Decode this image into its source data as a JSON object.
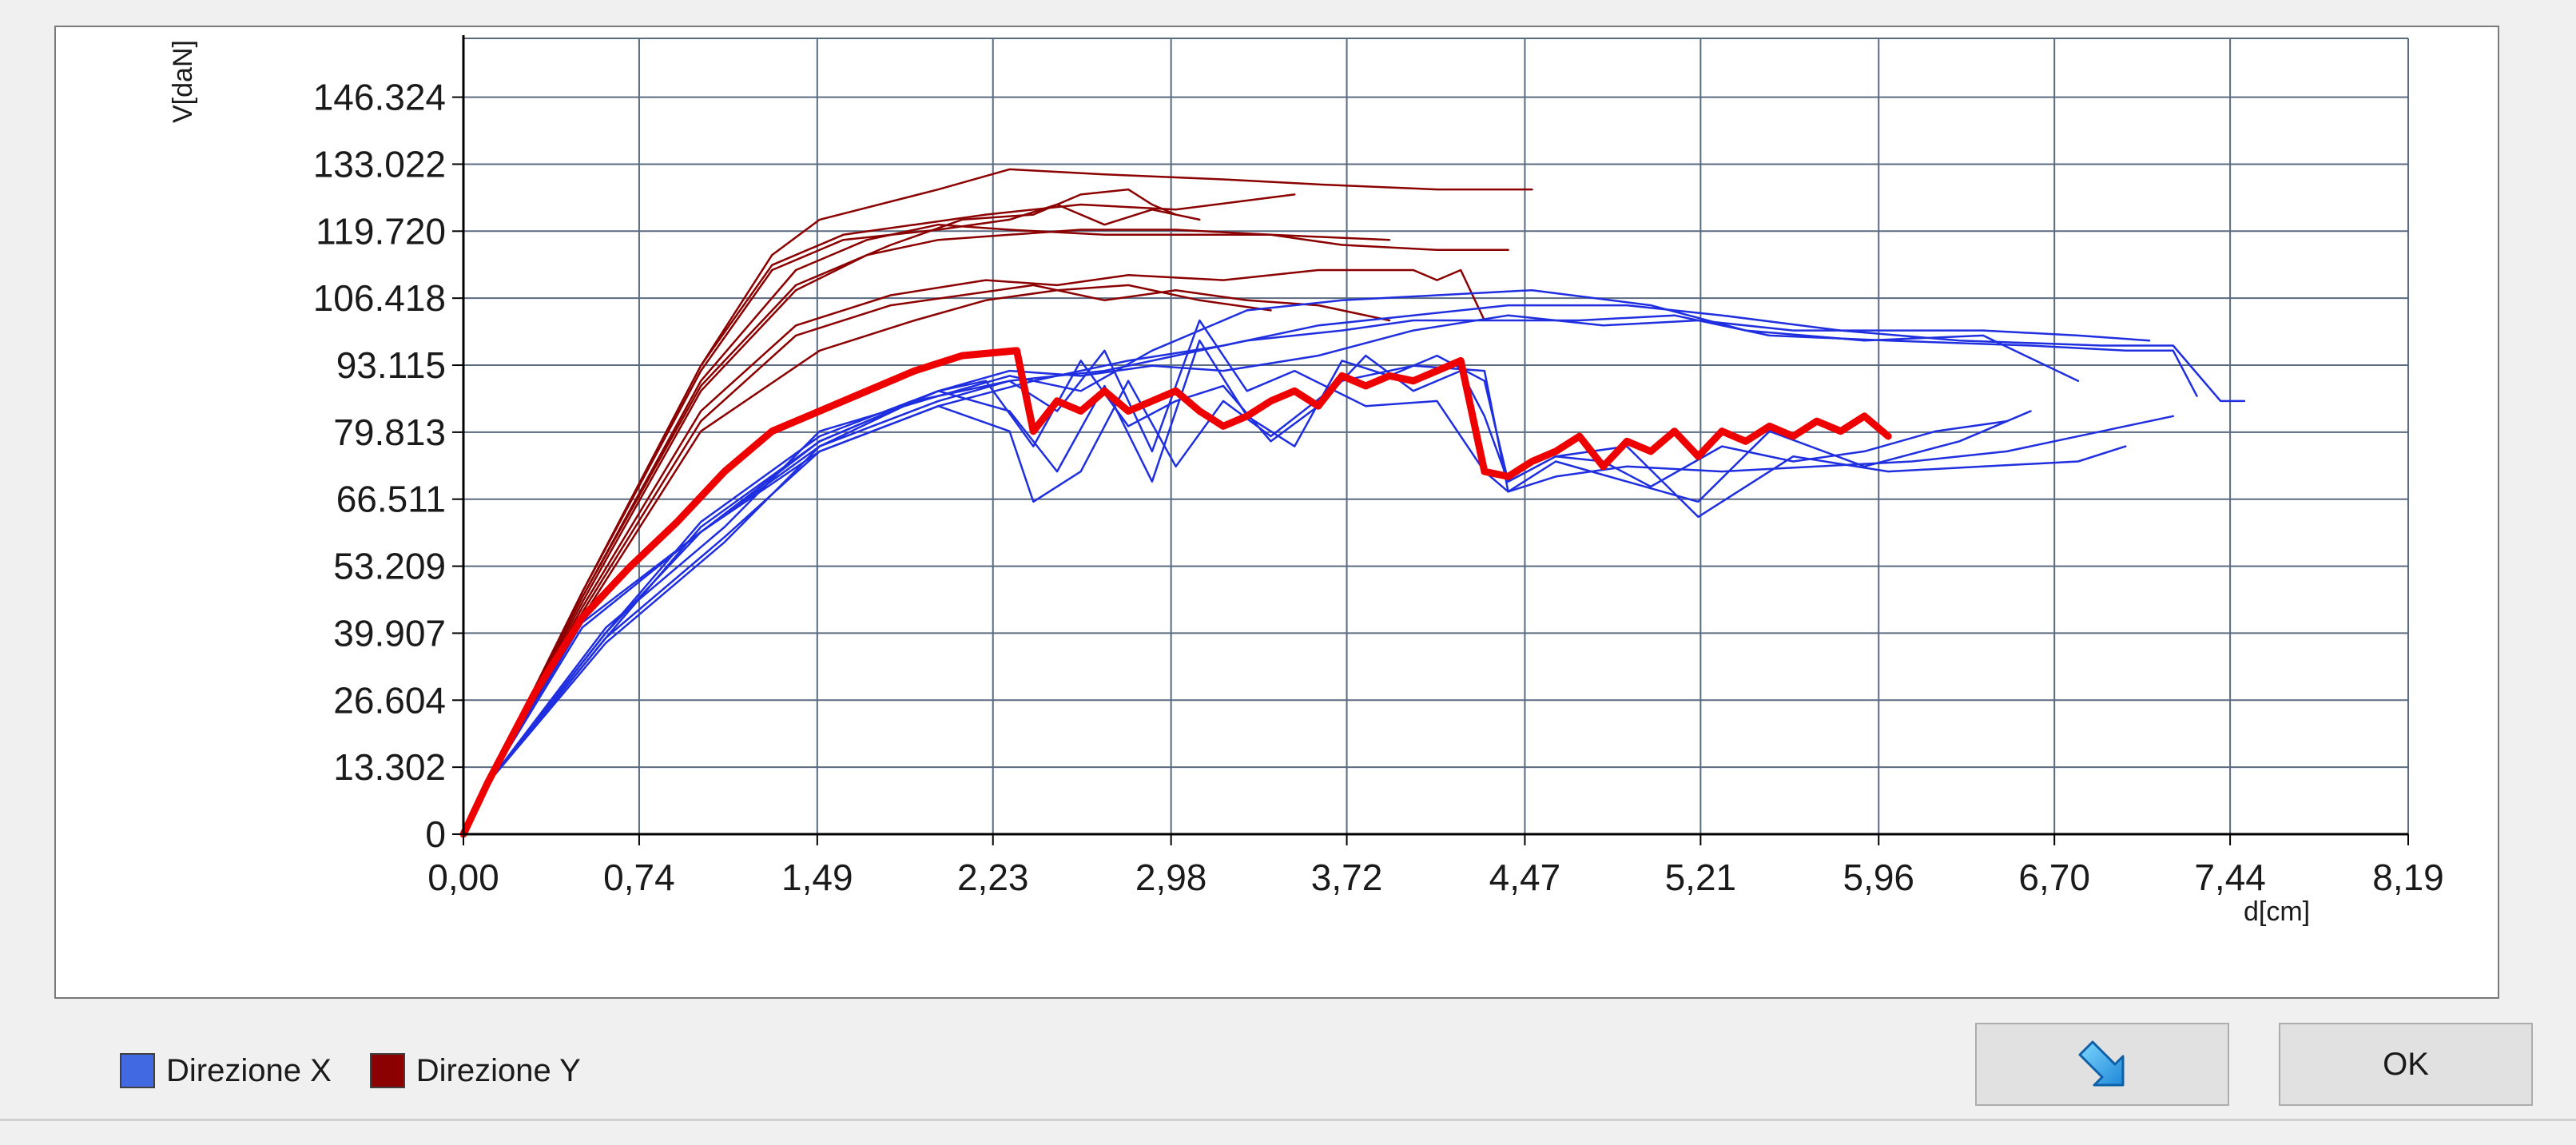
{
  "dialog": {
    "ok_label": "OK",
    "export_icon": "arrow-down-right-icon"
  },
  "legend": {
    "items": [
      {
        "label": "Direzione X",
        "color": "#4169e1"
      },
      {
        "label": "Direzione Y",
        "color": "#8b0000"
      }
    ]
  },
  "colors": {
    "x_series": "#1f2fe0",
    "y_series": "#8b0000",
    "highlight": "#ee0000",
    "grid": "#5a6a80"
  },
  "chart_data": {
    "type": "line",
    "title": "",
    "xlabel": "d[cm]",
    "ylabel": "V[daN]",
    "xlim": [
      0,
      8.19
    ],
    "ylim": [
      0,
      158
    ],
    "x_ticks": [
      "0,00",
      "0,74",
      "1,49",
      "2,23",
      "2,98",
      "3,72",
      "4,47",
      "5,21",
      "5,96",
      "6,70",
      "7,44",
      "8,19"
    ],
    "x_tick_values": [
      0,
      0.74,
      1.49,
      2.23,
      2.98,
      3.72,
      4.47,
      5.21,
      5.96,
      6.7,
      7.44,
      8.19
    ],
    "y_ticks": [
      "0",
      "13.302",
      "26.604",
      "39.907",
      "53.209",
      "66.511",
      "79.813",
      "93.115",
      "106.418",
      "119.720",
      "133.022",
      "146.324"
    ],
    "y_tick_values": [
      0,
      13.302,
      26.604,
      39.907,
      53.209,
      66.511,
      79.813,
      93.115,
      106.418,
      119.72,
      133.022,
      146.324
    ],
    "grid": true,
    "legend_position": "bottom-left",
    "series_groups": {
      "direzione_y": [
        {
          "x": [
            0,
            0.1,
            0.5,
            1.0,
            1.3,
            1.5,
            2.0,
            2.3,
            2.7,
            3.2,
            3.6,
            4.1,
            4.5
          ],
          "y": [
            0,
            10,
            48,
            93,
            115,
            122,
            128,
            132,
            131,
            130,
            129,
            128,
            128
          ]
        },
        {
          "x": [
            0,
            0.1,
            0.5,
            1.0,
            1.3,
            1.6,
            1.9,
            2.2,
            2.6,
            3.0,
            3.5
          ],
          "y": [
            0,
            10,
            48,
            93,
            113,
            119,
            121,
            123,
            125,
            124,
            127
          ]
        },
        {
          "x": [
            0,
            0.1,
            0.5,
            1.0,
            1.4,
            1.7,
            2.0,
            2.3,
            2.6,
            3.0,
            3.4,
            3.7,
            4.1,
            4.4
          ],
          "y": [
            0,
            10,
            46,
            88,
            108,
            115,
            118,
            119,
            120,
            120,
            119,
            117,
            116,
            116
          ]
        },
        {
          "x": [
            0,
            0.1,
            0.5,
            1.0,
            1.4,
            1.7,
            2.0,
            2.3,
            2.7,
            3.0,
            3.4,
            3.9
          ],
          "y": [
            0,
            10,
            47,
            90,
            112,
            118,
            121,
            120,
            119,
            119,
            119,
            118
          ]
        },
        {
          "x": [
            0,
            0.1,
            0.5,
            1.0,
            1.4,
            1.8,
            2.1,
            2.4,
            2.6,
            2.8,
            2.9,
            3.0
          ],
          "y": [
            0,
            10,
            47,
            89,
            109,
            117,
            122,
            123,
            127,
            128,
            125,
            123
          ]
        },
        {
          "x": [
            0,
            0.1,
            0.5,
            1.0,
            1.3,
            1.6,
            2.0,
            2.3,
            2.5,
            2.7,
            2.9,
            3.1
          ],
          "y": [
            0,
            10,
            48,
            92,
            112,
            118,
            120,
            122,
            125,
            121,
            124,
            122
          ]
        },
        {
          "x": [
            0,
            0.1,
            0.5,
            1.0,
            1.4,
            1.8,
            2.2,
            2.5,
            2.8,
            3.2,
            3.6,
            4.0,
            4.1,
            4.2,
            4.3
          ],
          "y": [
            0,
            10,
            45,
            84,
            101,
            107,
            110,
            109,
            111,
            110,
            112,
            112,
            110,
            112,
            102
          ]
        },
        {
          "x": [
            0,
            0.1,
            0.5,
            1.0,
            1.4,
            1.8,
            2.1,
            2.4,
            2.7,
            3.0,
            3.3,
            3.6,
            3.9
          ],
          "y": [
            0,
            10,
            44,
            82,
            99,
            105,
            107,
            109,
            106,
            108,
            106,
            105,
            102
          ]
        },
        {
          "x": [
            0,
            0.1,
            0.5,
            1.0,
            1.5,
            1.9,
            2.2,
            2.5,
            2.8,
            3.1,
            3.4
          ],
          "y": [
            0,
            10,
            43,
            80,
            96,
            102,
            106,
            108,
            109,
            106,
            104
          ]
        }
      ],
      "direzione_x": [
        {
          "x": [
            0,
            0.1,
            0.6,
            1.0,
            1.5,
            2.0,
            2.3,
            2.6,
            2.9,
            3.2,
            3.6,
            4.0,
            4.4,
            4.8,
            5.2,
            5.6,
            6.0,
            6.4,
            6.8,
            7.1
          ],
          "y": [
            0,
            10,
            40,
            60,
            78,
            88,
            92,
            91,
            93,
            92,
            95,
            100,
            103,
            101,
            102,
            100,
            100,
            100,
            99,
            98
          ]
        },
        {
          "x": [
            0,
            0.1,
            0.6,
            1.1,
            1.5,
            2.0,
            2.3,
            2.7,
            3.0,
            3.3,
            3.7,
            4.0,
            4.3,
            4.7,
            5.1,
            5.5,
            6.0,
            6.6,
            7.0,
            7.2,
            7.3
          ],
          "y": [
            0,
            10,
            38,
            58,
            77,
            86,
            90,
            92,
            95,
            98,
            100,
            102,
            102,
            102,
            103,
            99,
            98,
            97,
            96,
            96,
            87
          ]
        },
        {
          "x": [
            0,
            0.1,
            0.6,
            1.1,
            1.5,
            2.0,
            2.4,
            2.8,
            3.2,
            3.6,
            4.0,
            4.4,
            4.9,
            5.3,
            5.8,
            6.3,
            6.9,
            7.2,
            7.4,
            7.5
          ],
          "y": [
            0,
            10,
            39,
            59,
            76,
            85,
            90,
            94,
            97,
            101,
            103,
            105,
            105,
            103,
            100,
            98,
            97,
            97,
            86,
            86
          ]
        },
        {
          "x": [
            0,
            0.1,
            0.6,
            1.1,
            1.5,
            2.0,
            2.3,
            2.6,
            2.9,
            3.1,
            3.3,
            3.7,
            4.1,
            4.5,
            5.0,
            5.4,
            5.9,
            6.4,
            6.8
          ],
          "y": [
            0,
            10,
            41,
            61,
            80,
            87,
            91,
            88,
            96,
            100,
            104,
            106,
            107,
            108,
            105,
            100,
            98,
            99,
            90
          ]
        },
        {
          "x": [
            0,
            0.1,
            0.5,
            1.0,
            1.5,
            1.9,
            2.3,
            2.5,
            2.7,
            2.9,
            3.1,
            3.3,
            3.5,
            3.8,
            4.1,
            4.3,
            4.4,
            4.6,
            4.9,
            5.2,
            5.5,
            5.9,
            6.3,
            6.6
          ],
          "y": [
            0,
            10,
            42,
            60,
            77,
            86,
            90,
            84,
            96,
            76,
            102,
            88,
            92,
            85,
            86,
            72,
            68,
            74,
            70,
            66,
            80,
            73,
            78,
            84
          ]
        },
        {
          "x": [
            0,
            0.1,
            0.5,
            1.0,
            1.5,
            2.0,
            2.3,
            2.4,
            2.6,
            2.8,
            3.0,
            3.2,
            3.4,
            3.7,
            4.0,
            4.3,
            4.4,
            4.6,
            4.9,
            5.3,
            5.7,
            6.1,
            6.5,
            6.9,
            7.2
          ],
          "y": [
            0,
            10,
            41,
            60,
            76,
            85,
            80,
            66,
            72,
            90,
            73,
            86,
            79,
            90,
            93,
            92,
            68,
            71,
            73,
            72,
            73,
            74,
            76,
            80,
            83
          ]
        },
        {
          "x": [
            0,
            0.1,
            0.6,
            1.0,
            1.5,
            2.0,
            2.3,
            2.5,
            2.7,
            2.9,
            3.1,
            3.3,
            3.5,
            3.7,
            3.9,
            4.1,
            4.3,
            4.4,
            4.6,
            4.9,
            5.2,
            5.6,
            6.0,
            6.4,
            6.8,
            7.0
          ],
          "y": [
            0,
            10,
            40,
            62,
            79,
            88,
            84,
            72,
            89,
            70,
            98,
            83,
            77,
            94,
            91,
            95,
            90,
            70,
            75,
            77,
            63,
            75,
            72,
            73,
            74,
            77
          ]
        },
        {
          "x": [
            0,
            0.1,
            0.6,
            1.0,
            1.5,
            2.0,
            2.2,
            2.4,
            2.6,
            2.8,
            3.0,
            3.2,
            3.4,
            3.6,
            3.8,
            4.0,
            4.2,
            4.3,
            4.4,
            4.6,
            4.8,
            5.0,
            5.3,
            5.6,
            5.9,
            6.2,
            6.5
          ],
          "y": [
            0,
            10,
            39,
            61,
            78,
            88,
            90,
            77,
            94,
            81,
            86,
            89,
            78,
            85,
            95,
            88,
            92,
            83,
            70,
            75,
            74,
            69,
            77,
            74,
            76,
            80,
            82
          ]
        }
      ],
      "highlight": [
        {
          "x": [
            0,
            0.1,
            0.3,
            0.5,
            0.7,
            0.9,
            1.1,
            1.3,
            1.5,
            1.7,
            1.9,
            2.1,
            2.33,
            2.4,
            2.5,
            2.6,
            2.7,
            2.8,
            2.9,
            3.0,
            3.1,
            3.2,
            3.3,
            3.4,
            3.5,
            3.6,
            3.7,
            3.8,
            3.9,
            4.0,
            4.1,
            4.2,
            4.3,
            4.4,
            4.5,
            4.6,
            4.7,
            4.8,
            4.9,
            5.0,
            5.1,
            5.2,
            5.3,
            5.4,
            5.5,
            5.6,
            5.7,
            5.8,
            5.9,
            6.0
          ],
          "y": [
            0,
            10,
            28,
            43,
            53,
            62,
            72,
            80,
            84,
            88,
            92,
            95,
            96,
            80,
            86,
            84,
            88,
            84,
            86,
            88,
            84,
            81,
            83,
            86,
            88,
            85,
            91,
            89,
            91,
            90,
            92,
            94,
            72,
            71,
            74,
            76,
            79,
            73,
            78,
            76,
            80,
            75,
            80,
            78,
            81,
            79,
            82,
            80,
            83,
            79
          ]
        }
      ]
    }
  }
}
